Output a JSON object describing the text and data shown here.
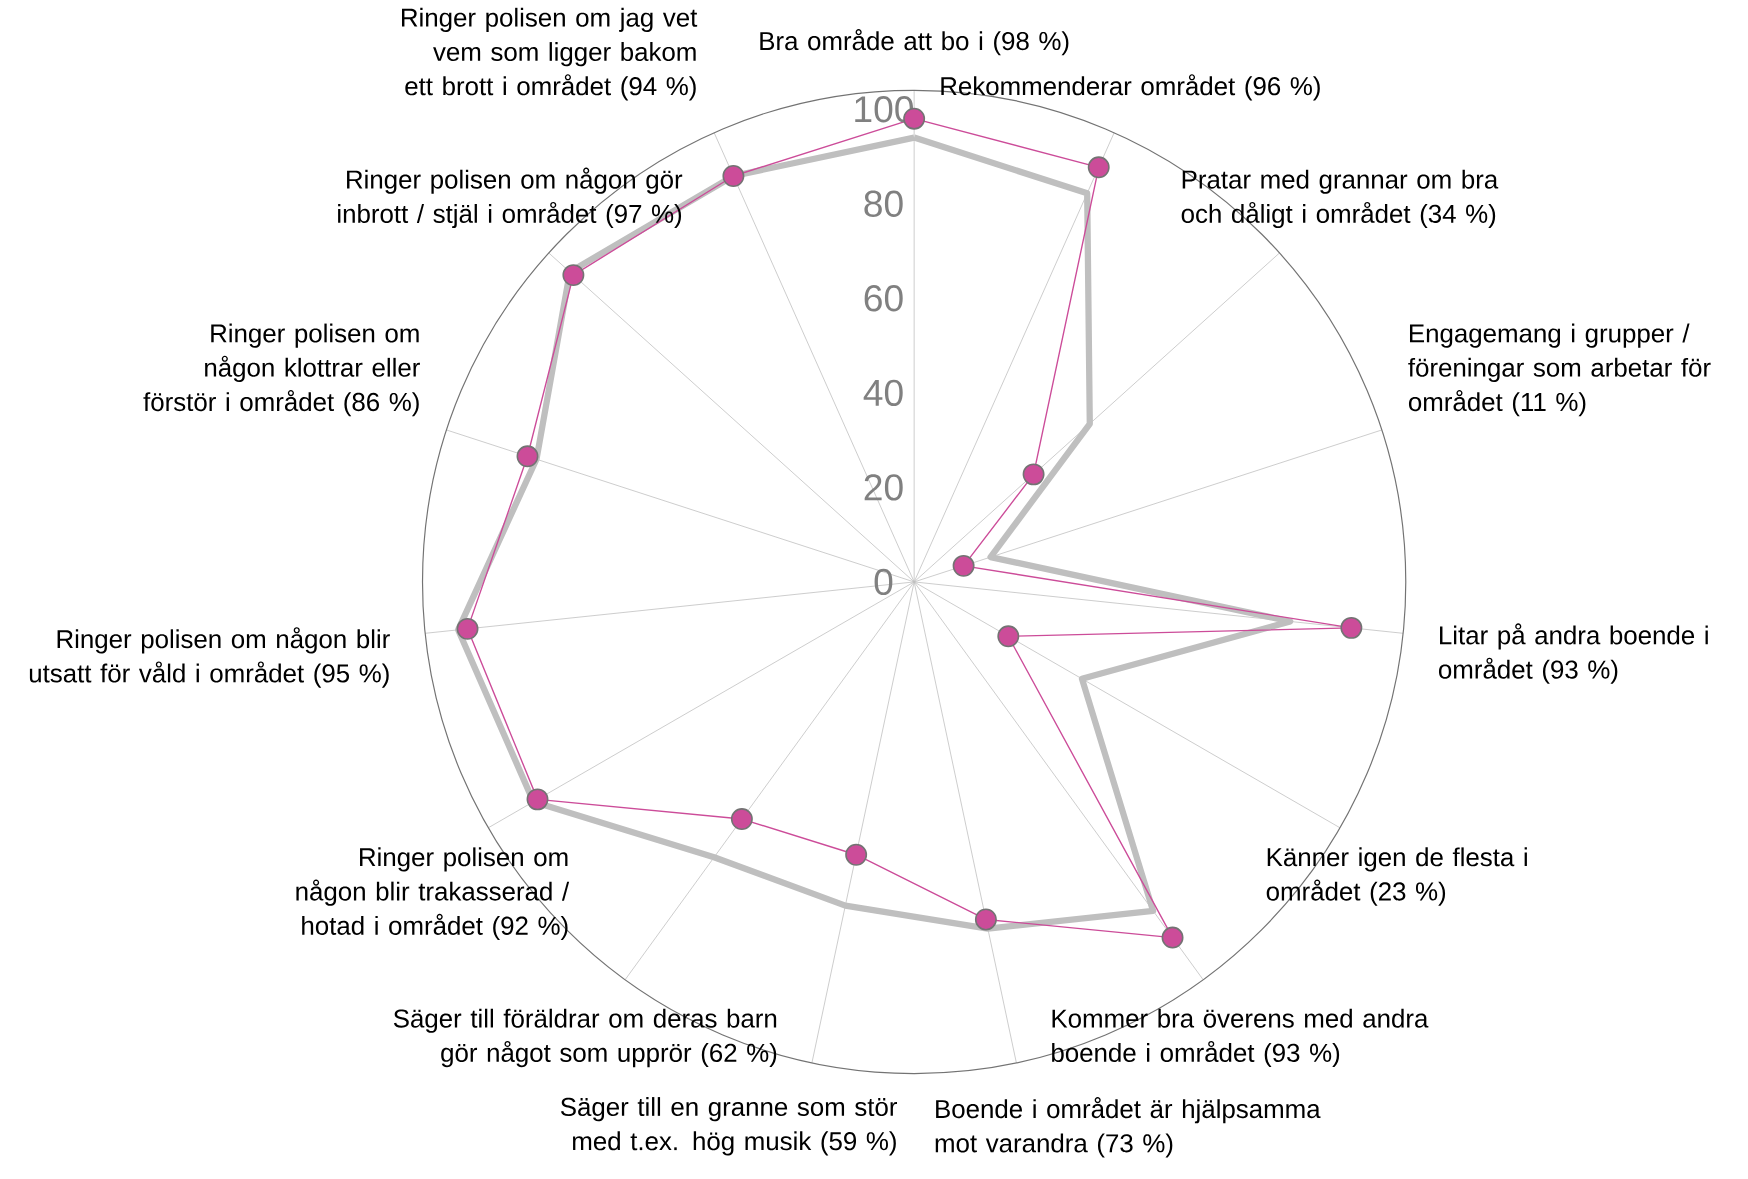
{
  "chart_data": {
    "type": "radar",
    "categories": [
      "Bra område att bo i (98 %)",
      "Rekommenderar området (96 %)",
      "Pratar med grannar om bra och dåligt i området (34 %)",
      "Engagemang i grupper / föreningar som arbetar för området (11 %)",
      "Litar på andra boende i området (93 %)",
      "Känner igen de flesta i området (23 %)",
      "Kommer bra överens med andra boende i området (93 %)",
      "Boende i området är hjälpsamma mot varandra (73 %)",
      "Säger till en granne som stör med t.ex. hög musik (59 %)",
      "Säger till föräldrar om deras barn gör något som upprör (62 %)",
      "Ringer polisen om någon blir trakasserad / hotad i området (92 %)",
      "Ringer polisen om någon blir utsatt för våld i området (95 %)",
      "Ringer polisen om någon klottrar eller förstör i området (86 %)",
      "Ringer polisen om någon gör inbrott / stjäl i området (97 %)",
      "Ringer polisen om jag vet vem som ligger bakom ett brott i området (94 %)"
    ],
    "ylim": [
      0,
      104
    ],
    "yticks": [
      0,
      20,
      40,
      60,
      80,
      100
    ],
    "grid": "x",
    "series": [
      {
        "color": "#bfbfbf",
        "marker": "none",
        "values": [
          94,
          90,
          50,
          17,
          80,
          41,
          86,
          75,
          70,
          72,
          93,
          97,
          84,
          98,
          94
        ]
      },
      {
        "color": "#cc4c99",
        "marker": "circle",
        "values": [
          98,
          96,
          34,
          11,
          93,
          23,
          93,
          73,
          59,
          62,
          92,
          95,
          86,
          97,
          94
        ]
      }
    ]
  }
}
